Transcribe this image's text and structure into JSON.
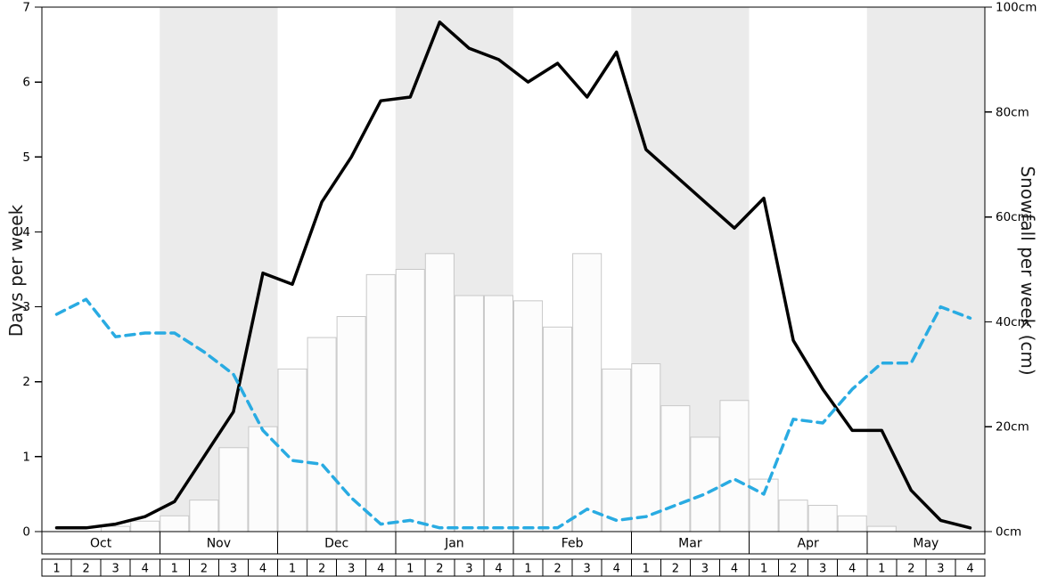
{
  "chart_data": {
    "type": "line+bar",
    "title": "",
    "left_axis": {
      "label": "Days per week",
      "min": 0,
      "max": 7,
      "ticks": [
        "0",
        "1",
        "2",
        "3",
        "4",
        "5",
        "6",
        "7"
      ]
    },
    "right_axis": {
      "label": "Snowfall per week (cm)",
      "min": 0,
      "max": 100,
      "ticks": [
        "0cm",
        "20cm",
        "40cm",
        "60cm",
        "80cm",
        "100cm"
      ],
      "tick_values": [
        0,
        20,
        40,
        60,
        80,
        100
      ]
    },
    "months": [
      "Oct",
      "Nov",
      "Dec",
      "Jan",
      "Feb",
      "Mar",
      "Apr",
      "May"
    ],
    "shaded_months": [
      false,
      true,
      false,
      true,
      false,
      true,
      false,
      true
    ],
    "weeks_per_month": [
      "1",
      "2",
      "3",
      "4"
    ],
    "band_color": "#ebebeb",
    "series": [
      {
        "name": "black_line_days",
        "type": "line",
        "axis": "left",
        "color": "#000000",
        "style": "solid",
        "values": [
          0.05,
          0.05,
          0.1,
          0.2,
          0.4,
          1.0,
          1.6,
          3.45,
          3.3,
          4.4,
          5.0,
          5.75,
          5.8,
          6.8,
          6.45,
          6.3,
          6.0,
          6.25,
          5.8,
          6.4,
          5.1,
          4.75,
          4.4,
          4.05,
          4.45,
          2.55,
          1.9,
          1.35,
          1.35,
          0.55,
          0.15,
          0.05
        ]
      },
      {
        "name": "blue_dashed_line_days",
        "type": "line",
        "axis": "left",
        "color": "#29abe2",
        "style": "dashed",
        "values": [
          2.9,
          3.1,
          2.6,
          2.65,
          2.65,
          2.4,
          2.1,
          1.35,
          0.95,
          0.9,
          0.45,
          0.1,
          0.15,
          0.05,
          0.05,
          0.05,
          0.05,
          0.05,
          0.3,
          0.15,
          0.2,
          0.35,
          0.5,
          0.7,
          0.5,
          1.5,
          1.45,
          1.9,
          2.25,
          2.25,
          3.0,
          2.85
        ]
      },
      {
        "name": "snowfall_bars_cm",
        "type": "bar",
        "axis": "right",
        "fill": "#fcfcfc",
        "stroke": "#c8c8c8",
        "values": [
          0,
          0,
          1,
          2,
          3,
          6,
          16,
          20,
          31,
          37,
          41,
          49,
          50,
          53,
          45,
          45,
          44,
          39,
          53,
          31,
          32,
          24,
          18,
          25,
          10,
          6,
          5,
          3,
          1,
          0,
          0,
          0
        ]
      }
    ]
  }
}
